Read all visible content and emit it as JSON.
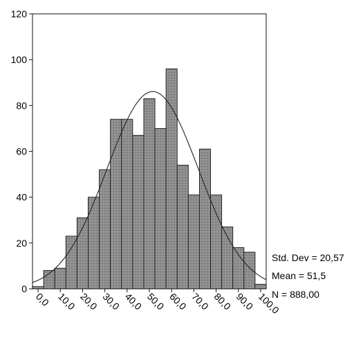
{
  "chart_data": {
    "type": "bar",
    "subtype": "histogram",
    "x_tick_labels": [
      "0,0",
      "10,0",
      "20,0",
      "30,0",
      "40,0",
      "50,0",
      "60,0",
      "70,0",
      "80,0",
      "90,0",
      "100,0"
    ],
    "y_tick_labels": [
      "0",
      "20",
      "40",
      "60",
      "80",
      "100",
      "120"
    ],
    "xlim": [
      -2.5,
      102.5
    ],
    "ylim": [
      0,
      120
    ],
    "bin_width": 5,
    "bin_centers": [
      0,
      5,
      10,
      15,
      20,
      25,
      30,
      35,
      40,
      45,
      50,
      55,
      60,
      65,
      70,
      75,
      80,
      85,
      90,
      95,
      100
    ],
    "values": [
      1,
      8,
      9,
      23,
      31,
      40,
      52,
      74,
      74,
      67,
      83,
      70,
      96,
      54,
      41,
      61,
      41,
      27,
      18,
      16,
      2
    ],
    "normal_curve": {
      "mean": 51.5,
      "std_dev": 20.57,
      "n": 888
    },
    "grid": false,
    "bar_color": "#8a8a8a",
    "stats": {
      "std_dev_label": "Std. Dev = 20,57",
      "mean_label": "Mean = 51,5",
      "n_label": "N = 888,00"
    }
  }
}
